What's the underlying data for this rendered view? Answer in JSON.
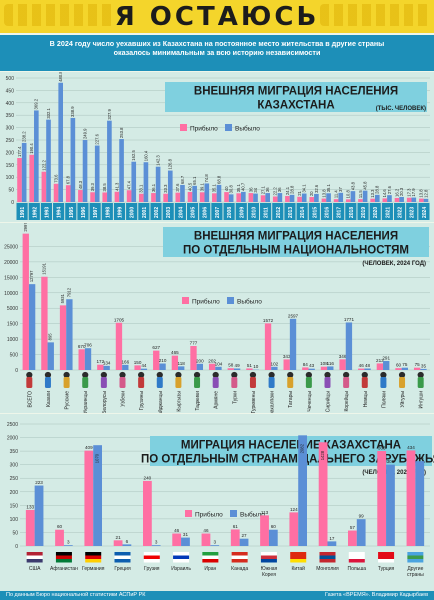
{
  "title": "Я ОСТАЮСЬ",
  "intro": {
    "line1": "В 2024 году число уехавших из Казахстана на постоянное место жительства в другие страны",
    "line2": "оказалось минимальным за всю историю независимости"
  },
  "colors": {
    "arrived": "#ff6fa3",
    "departed": "#5b8fd6",
    "banner": "#f4d52b",
    "band": "#1d8fb8",
    "heading_bg": "#7fd0df",
    "panel_bg": "#d4ebe5"
  },
  "legend": {
    "arrived": "Прибыло",
    "departed": "Выбыло"
  },
  "chart1": {
    "heading1": "ВНЕШНЯЯ МИГРАЦИЯ НАСЕЛЕНИЯ",
    "heading2": "КАЗАХСТАНА",
    "unit": "(ТЫС. ЧЕЛОВЕК)"
  },
  "chart2": {
    "heading1": "ВНЕШНЯЯ МИГРАЦИЯ НАСЕЛЕНИЯ",
    "heading2": "ПО ОТДЕЛЬНЫМ НАЦИОНАЛЬНОСТЯМ",
    "unit": "(ЧЕЛОВЕК, 2024 ГОД)"
  },
  "chart3": {
    "heading1": "МИГРАЦИЯ НАСЕЛЕНИЕ КАЗАХСТАНА",
    "heading2": "ПО ОТДЕЛЬНЫМ СТРАНАМ ДАЛЬНЕГО ЗАРУБЕЖЬЯ",
    "unit": "(ЧЕЛОВЕК, 2024 ГОД)"
  },
  "chart_data": [
    {
      "type": "bar",
      "categories": [
        "1991",
        "1992",
        "1993",
        "1994",
        "1995",
        "1996",
        "1997",
        "1998",
        "1999",
        "2000",
        "2001",
        "2002",
        "2003",
        "2004",
        "2005",
        "2006",
        "2007",
        "2008",
        "2009",
        "2010",
        "2011",
        "2012",
        "2013",
        "2014",
        "2015",
        "2016",
        "2017",
        "2018",
        "2019",
        "2020",
        "2021",
        "2022",
        "2023",
        "2024"
      ],
      "series": [
        {
          "name": "Прибыло",
          "values": [
            177.4,
            190.4,
            122.2,
            73.6,
            67.8,
            48.3,
            39.3,
            38.5,
            41.3,
            47.4,
            33.1,
            36.1,
            33.3,
            37.6,
            40.5,
            39.1,
            35.1,
            40.0,
            35.1,
            36.0,
            27.1,
            22.2,
            24.1,
            21.0,
            20.0,
            13.8,
            11.4,
            10.8,
            11.5,
            13.3,
            14.6,
            16.2,
            17.3,
            13.8
          ]
        },
        {
          "name": "Выбыло",
          "values": [
            238.2,
            369.2,
            332.1,
            480.8,
            338.9,
            249.9,
            227.6,
            327.9,
            253.8,
            162.5,
            160.4,
            142.3,
            126.8,
            68.7,
            65.1,
            74.8,
            68.8,
            30.8,
            40.7,
            34.0,
            36.0,
            36.0,
            28.8,
            34.1,
            32.6,
            35.1,
            37.0,
            43.8,
            45.8,
            28.8,
            27.6,
            20.3,
            17.9,
            12.8
          ]
        }
      ],
      "ylim": [
        0,
        500
      ],
      "yticks": [
        0,
        50,
        100,
        150,
        200,
        250,
        300,
        350,
        400,
        450,
        500
      ]
    },
    {
      "type": "bar",
      "categories": [
        "ВСЕГО",
        "Казахи",
        "Русские",
        "Украинцы",
        "Белорусы",
        "Узбеки",
        "Грузины",
        "Азербайджанцы",
        "Кыргызы",
        "Таджики",
        "Армяне",
        "Турки",
        "Туркмены",
        "Каракалпаки",
        "Татары",
        "Чеченцы",
        "Сирийцы",
        "Корейцы",
        "Немцы",
        "Поляки",
        "Уйгуры",
        "Ингуши"
      ],
      "series": [
        {
          "name": "Прибыло",
          "values": [
            29971,
            15191,
            5931,
            670,
            172,
            1705,
            150,
            627,
            465,
            777,
            202,
            58,
            51,
            1572,
            343,
            84,
            108,
            346,
            46,
            213,
            60,
            75
          ]
        },
        {
          "name": "Выбыло",
          "values": [
            12797,
            895,
            7912,
            706,
            134,
            166,
            44,
            210,
            118,
            200,
            104,
            49,
            10,
            102,
            2597,
            43,
            116,
            1771,
            48,
            291,
            75,
            35
          ]
        }
      ],
      "ylim": [
        0,
        31000
      ],
      "yticks": [
        0,
        500,
        1000,
        1500,
        5000,
        10000,
        15000,
        20000,
        25000
      ]
    },
    {
      "type": "bar",
      "categories": [
        "США",
        "Афганистан",
        "Германия",
        "Греция",
        "Грузия",
        "Израиль",
        "Иран",
        "Канада",
        "Южная Корея",
        "Китай",
        "Монголия",
        "Польша",
        "Турция",
        "Другие страны"
      ],
      "series": [
        {
          "name": "Прибыло",
          "values": [
            133,
            60,
            409,
            21,
            240,
            46,
            46,
            61,
            113,
            124,
            1428,
            57,
            363,
            434
          ]
        },
        {
          "name": "Выбыло",
          "values": [
            223,
            3,
            1070,
            6,
            3,
            31,
            3,
            27,
            60,
            2082,
            17,
            99,
            300,
            313
          ]
        }
      ],
      "ylim": [
        0,
        2500
      ],
      "yticks": [
        0,
        50,
        100,
        150,
        200,
        250,
        300,
        350,
        2000,
        2500
      ]
    }
  ],
  "footer": {
    "source": "По данным Бюро национальной статистики АСПиР РК",
    "credit": "Газета «ВРЕМЯ». Владимир Кадырбаев"
  }
}
